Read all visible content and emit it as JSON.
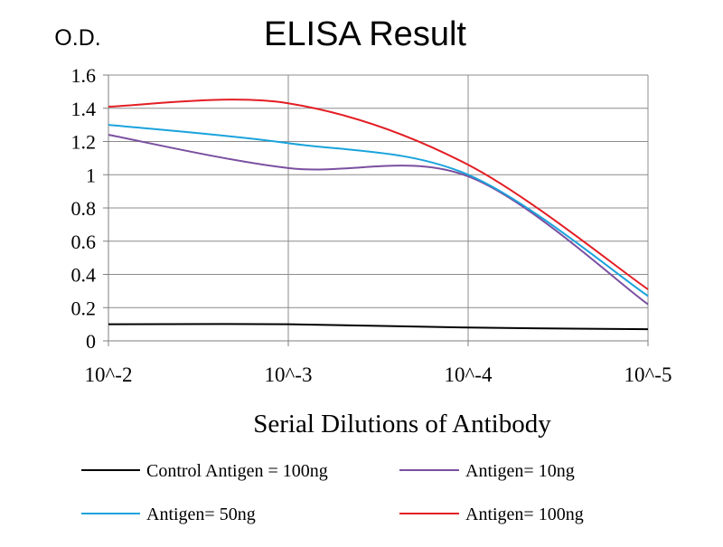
{
  "chart_data": {
    "type": "line",
    "title": "ELISA Result",
    "ylabel": "O.D.",
    "xlabel": "Serial Dilutions  of Antibody",
    "x_tick_labels": [
      "10^-2",
      "10^-3",
      "10^-4",
      "10^-5"
    ],
    "x": [
      0.01,
      0.001,
      0.0001,
      1e-05
    ],
    "x_scale": "log",
    "y_tick_labels": [
      "0",
      "0.2",
      "0.4",
      "0.6",
      "0.8",
      "1",
      "1.2",
      "1.4",
      "1.6"
    ],
    "ylim": [
      0,
      1.6
    ],
    "grid": true,
    "legend_position": "bottom",
    "series": [
      {
        "name": "Control Antigen = 100ng",
        "color": "#000000",
        "values": [
          0.1,
          0.1,
          0.08,
          0.07
        ]
      },
      {
        "name": "Antigen= 10ng",
        "color": "#7a4fa0",
        "values": [
          1.24,
          1.04,
          0.99,
          0.22
        ]
      },
      {
        "name": "Antigen= 50ng",
        "color": "#1aa3dc",
        "values": [
          1.3,
          1.19,
          1.0,
          0.27
        ]
      },
      {
        "name": "Antigen= 100ng",
        "color": "#e31e24",
        "values": [
          1.41,
          1.43,
          1.06,
          0.31
        ]
      }
    ]
  }
}
